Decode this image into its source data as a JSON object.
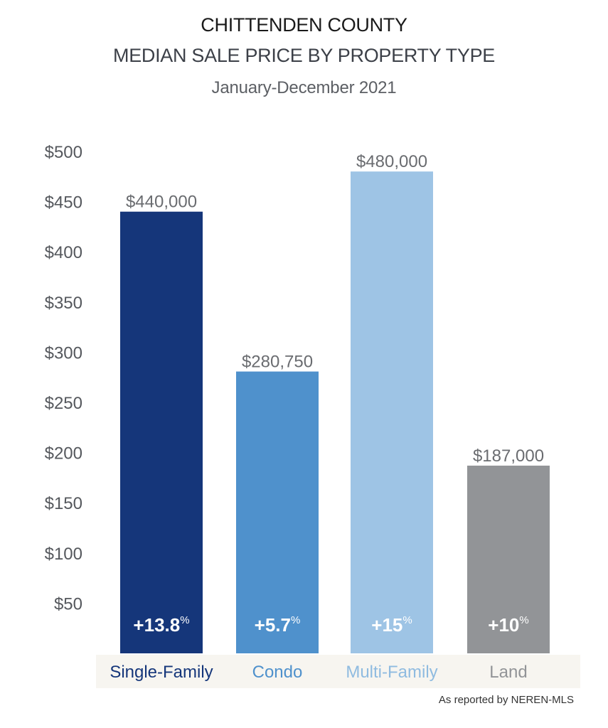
{
  "chart_data": {
    "type": "bar",
    "title": "CHITTENDEN COUNTY",
    "subtitle": "MEDIAN SALE PRICE BY PROPERTY TYPE",
    "period": "January-December 2021",
    "source_note": "As reported by NEREN-MLS",
    "ylim": [
      0,
      500
    ],
    "y_ticks": [
      50,
      100,
      150,
      200,
      250,
      300,
      350,
      400,
      450,
      500
    ],
    "y_tick_labels": [
      "$50",
      "$100",
      "$150",
      "$200",
      "$250",
      "$300",
      "$350",
      "$400",
      "$450",
      "$500"
    ],
    "grid": false,
    "categories": [
      "Single-Family",
      "Condo",
      "Multi-Family",
      "Land"
    ],
    "values": [
      440,
      280.75,
      480,
      187
    ],
    "value_labels": [
      "$440,000",
      "$280,750",
      "$480,000",
      "$187,000"
    ],
    "change_values": [
      "+13.8",
      "+5.7",
      "+15",
      "+10"
    ],
    "change_unit": "%",
    "colors": [
      "#15367a",
      "#4f91cc",
      "#9ec4e5",
      "#929497"
    ],
    "label_colors": [
      "#15367a",
      "#4f91cc",
      "#8fbbe0",
      "#929497"
    ],
    "category_band_color": "#f7f5f0"
  }
}
